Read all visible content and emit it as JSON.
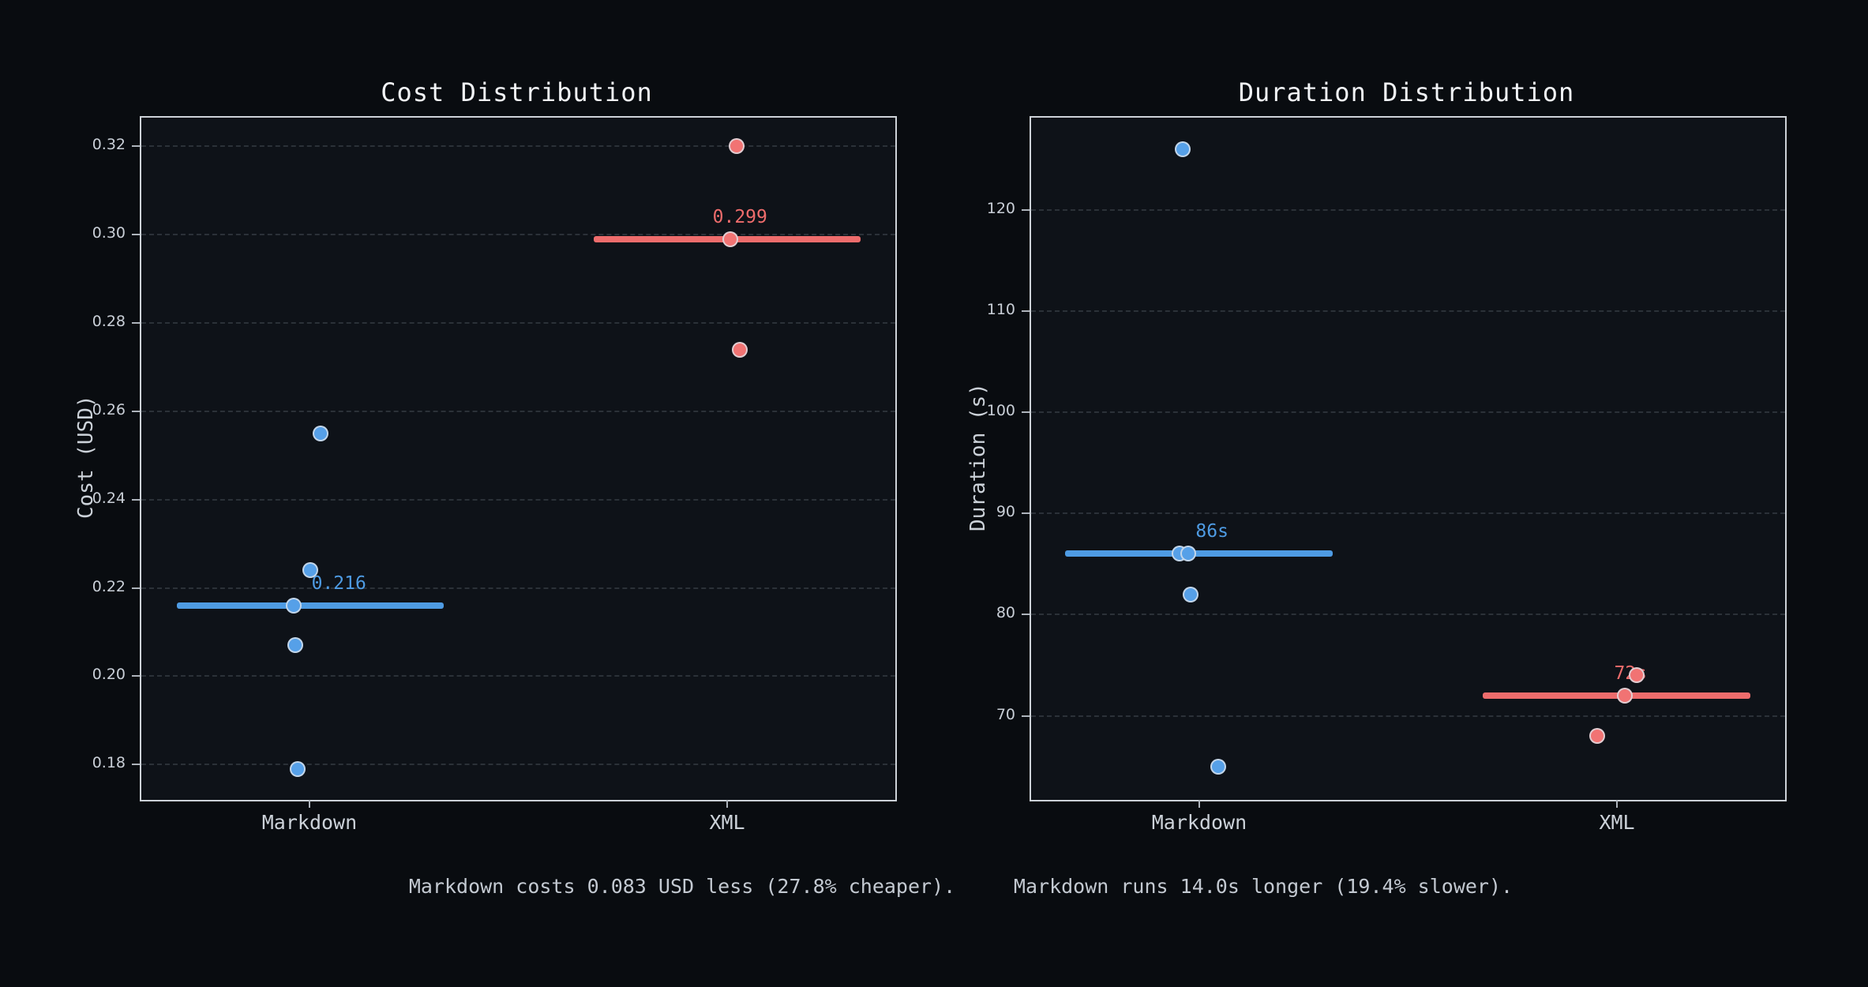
{
  "figure": {
    "background": "#090c10",
    "axes_background": "#0e1218",
    "frame_color": "#cdd2d8",
    "grid_color": "rgba(150,160,172,0.22)",
    "accent_blue": "#4e9be3",
    "accent_red": "#ee6c6c"
  },
  "annotations": {
    "cost": "Markdown costs 0.083 USD less (27.8% cheaper).",
    "duration": "Markdown runs 14.0s longer (19.4% slower)."
  },
  "chart_data": [
    {
      "type": "scatter",
      "title": "Cost Distribution",
      "xlabel": "",
      "ylabel": "Cost (USD)",
      "grid": "horizontal-dashed",
      "legend": "none",
      "categories": [
        "Markdown",
        "XML"
      ],
      "category_x": [
        0.223,
        0.777
      ],
      "ylim": [
        0.172,
        0.3265
      ],
      "yticks": [
        {
          "v": 0.32,
          "label": "0.32"
        },
        {
          "v": 0.3,
          "label": "0.30"
        },
        {
          "v": 0.28,
          "label": "0.28"
        },
        {
          "v": 0.26,
          "label": "0.26"
        },
        {
          "v": 0.24,
          "label": "0.24"
        },
        {
          "v": 0.22,
          "label": "0.22"
        },
        {
          "v": 0.2,
          "label": "0.20"
        },
        {
          "v": 0.18,
          "label": "0.18"
        }
      ],
      "series": [
        {
          "name": "Markdown",
          "color": "#4e9be3",
          "dot_color": "#56a0e8",
          "median": {
            "value": 0.216,
            "label": "0.216",
            "span": [
              0.047,
              0.401
            ],
            "label_x": 0.262
          },
          "points": [
            {
              "x": 0.238,
              "v": 0.255
            },
            {
              "x": 0.224,
              "v": 0.224
            },
            {
              "x": 0.202,
              "v": 0.216
            },
            {
              "x": 0.204,
              "v": 0.207
            },
            {
              "x": 0.207,
              "v": 0.179
            }
          ]
        },
        {
          "name": "XML",
          "color": "#ee6c6c",
          "dot_color": "#f17373",
          "median": {
            "value": 0.299,
            "label": "0.299",
            "span": [
              0.6,
              0.954
            ],
            "label_x": 0.794
          },
          "points": [
            {
              "x": 0.79,
              "v": 0.32
            },
            {
              "x": 0.781,
              "v": 0.299
            },
            {
              "x": 0.794,
              "v": 0.274
            }
          ]
        }
      ]
    },
    {
      "type": "scatter",
      "title": "Duration Distribution",
      "xlabel": "",
      "ylabel": "Duration (s)",
      "grid": "horizontal-dashed",
      "legend": "none",
      "categories": [
        "Markdown",
        "XML"
      ],
      "category_x": [
        0.223,
        0.777
      ],
      "ylim": [
        61.7,
        129.1
      ],
      "yticks": [
        {
          "v": 120,
          "label": "120"
        },
        {
          "v": 110,
          "label": "110"
        },
        {
          "v": 100,
          "label": "100"
        },
        {
          "v": 90,
          "label": "90"
        },
        {
          "v": 80,
          "label": "80"
        },
        {
          "v": 70,
          "label": "70"
        }
      ],
      "series": [
        {
          "name": "Markdown",
          "color": "#4e9be3",
          "dot_color": "#56a0e8",
          "median": {
            "value": 86,
            "label": "86s",
            "span": [
              0.045,
              0.4
            ],
            "label_x": 0.24
          },
          "points": [
            {
              "x": 0.201,
              "v": 126
            },
            {
              "x": 0.197,
              "v": 86
            },
            {
              "x": 0.208,
              "v": 86
            },
            {
              "x": 0.212,
              "v": 82
            },
            {
              "x": 0.248,
              "v": 65
            }
          ]
        },
        {
          "name": "XML",
          "color": "#ee6c6c",
          "dot_color": "#f17373",
          "median": {
            "value": 72,
            "label": "72s",
            "span": [
              0.599,
              0.954
            ],
            "label_x": 0.795
          },
          "points": [
            {
              "x": 0.803,
              "v": 74
            },
            {
              "x": 0.787,
              "v": 72
            },
            {
              "x": 0.751,
              "v": 68
            }
          ]
        }
      ]
    }
  ]
}
